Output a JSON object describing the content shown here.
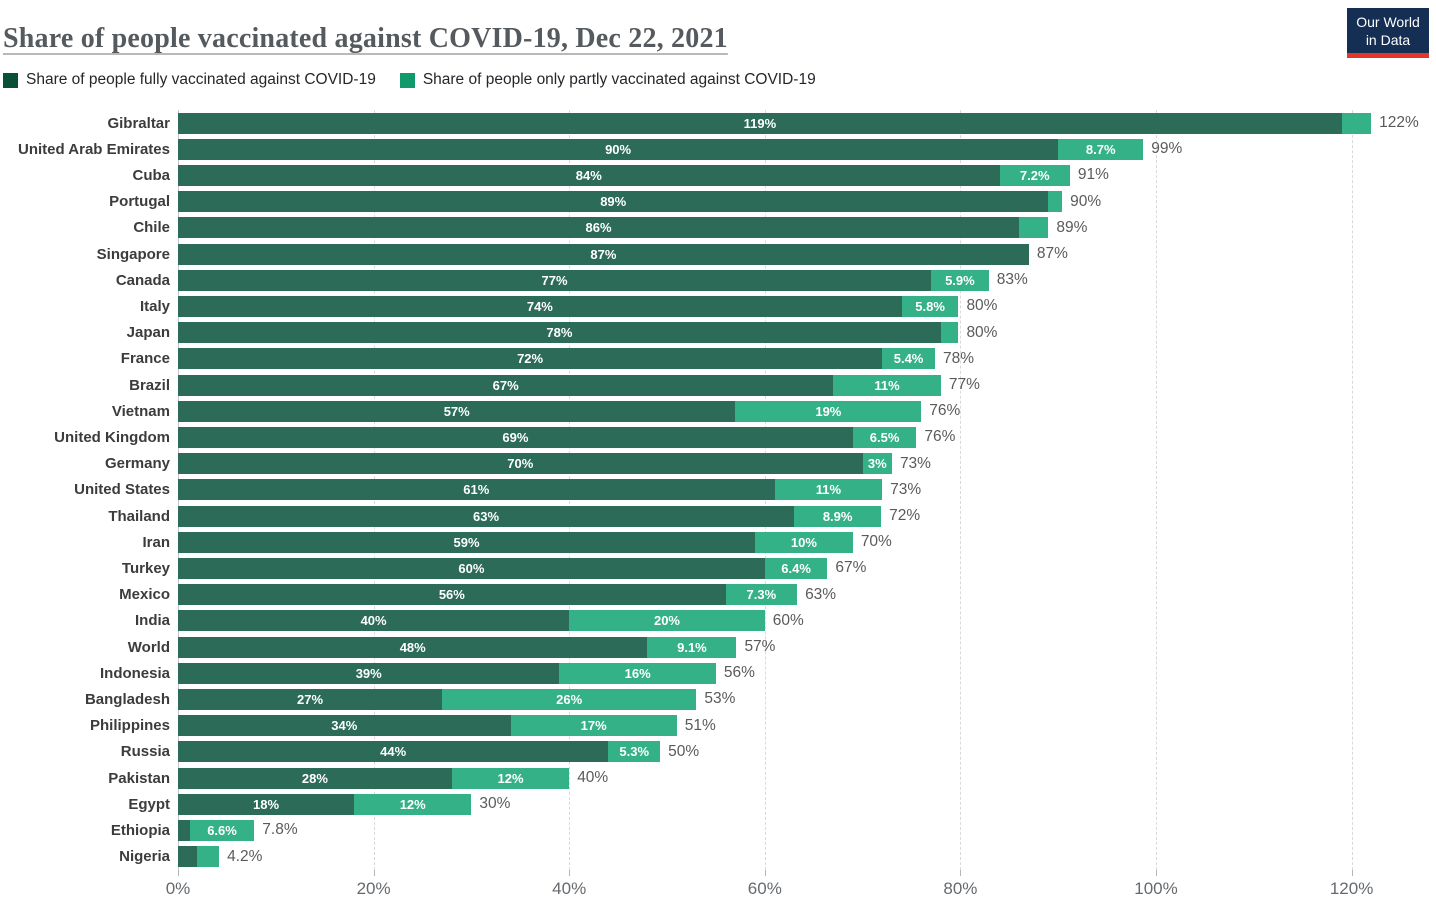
{
  "header": {
    "title": "Share of people vaccinated against COVID-19, Dec 22, 2021",
    "logo": {
      "line1": "Our World",
      "line2": "in Data",
      "bg_color": "#152e53",
      "accent_color": "#e0362c"
    }
  },
  "legend": [
    {
      "label": "Share of people fully vaccinated against COVID-19",
      "color": "#0a4f3a"
    },
    {
      "label": "Share of people only partly vaccinated against COVID-19",
      "color": "#10996a"
    }
  ],
  "chart_data": {
    "type": "bar",
    "orientation": "horizontal",
    "stacked": true,
    "title": "Share of people vaccinated against COVID-19, Dec 22, 2021",
    "series_names": [
      "Share of people fully vaccinated against COVID-19",
      "Share of people only partly vaccinated against COVID-19"
    ],
    "colors": {
      "full_bar": "#2b6b57",
      "partial_bar": "#35b188"
    },
    "xlim": [
      0,
      128.6
    ],
    "x_ticks": [
      {
        "value": 0,
        "label": "0%"
      },
      {
        "value": 20,
        "label": "20%"
      },
      {
        "value": 40,
        "label": "40%"
      },
      {
        "value": 60,
        "label": "60%"
      },
      {
        "value": 80,
        "label": "80%"
      },
      {
        "value": 100,
        "label": "100%"
      },
      {
        "value": 120,
        "label": "120%"
      }
    ],
    "rows": [
      {
        "country": "Gibraltar",
        "full": 119,
        "partial": 3,
        "full_label": "119%",
        "partial_label": "",
        "total_label": "122%"
      },
      {
        "country": "United Arab Emirates",
        "full": 90,
        "partial": 8.7,
        "full_label": "90%",
        "partial_label": "8.7%",
        "total_label": "99%"
      },
      {
        "country": "Cuba",
        "full": 84,
        "partial": 7.2,
        "full_label": "84%",
        "partial_label": "7.2%",
        "total_label": "91%"
      },
      {
        "country": "Portugal",
        "full": 89,
        "partial": 1.4,
        "full_label": "89%",
        "partial_label": "",
        "total_label": "90%"
      },
      {
        "country": "Chile",
        "full": 86,
        "partial": 3,
        "full_label": "86%",
        "partial_label": "",
        "total_label": "89%"
      },
      {
        "country": "Singapore",
        "full": 87,
        "partial": 0,
        "full_label": "87%",
        "partial_label": "",
        "total_label": "87%"
      },
      {
        "country": "Canada",
        "full": 77,
        "partial": 5.9,
        "full_label": "77%",
        "partial_label": "5.9%",
        "total_label": "83%"
      },
      {
        "country": "Italy",
        "full": 74,
        "partial": 5.8,
        "full_label": "74%",
        "partial_label": "5.8%",
        "total_label": "80%"
      },
      {
        "country": "Japan",
        "full": 78,
        "partial": 1.8,
        "full_label": "78%",
        "partial_label": "",
        "total_label": "80%"
      },
      {
        "country": "France",
        "full": 72,
        "partial": 5.4,
        "full_label": "72%",
        "partial_label": "5.4%",
        "total_label": "78%"
      },
      {
        "country": "Brazil",
        "full": 67,
        "partial": 11,
        "full_label": "67%",
        "partial_label": "11%",
        "total_label": "77%"
      },
      {
        "country": "Vietnam",
        "full": 57,
        "partial": 19,
        "full_label": "57%",
        "partial_label": "19%",
        "total_label": "76%"
      },
      {
        "country": "United Kingdom",
        "full": 69,
        "partial": 6.5,
        "full_label": "69%",
        "partial_label": "6.5%",
        "total_label": "76%"
      },
      {
        "country": "Germany",
        "full": 70,
        "partial": 3,
        "full_label": "70%",
        "partial_label": "3%",
        "total_label": "73%"
      },
      {
        "country": "United States",
        "full": 61,
        "partial": 11,
        "full_label": "61%",
        "partial_label": "11%",
        "total_label": "73%"
      },
      {
        "country": "Thailand",
        "full": 63,
        "partial": 8.9,
        "full_label": "63%",
        "partial_label": "8.9%",
        "total_label": "72%"
      },
      {
        "country": "Iran",
        "full": 59,
        "partial": 10,
        "full_label": "59%",
        "partial_label": "10%",
        "total_label": "70%"
      },
      {
        "country": "Turkey",
        "full": 60,
        "partial": 6.4,
        "full_label": "60%",
        "partial_label": "6.4%",
        "total_label": "67%"
      },
      {
        "country": "Mexico",
        "full": 56,
        "partial": 7.3,
        "full_label": "56%",
        "partial_label": "7.3%",
        "total_label": "63%"
      },
      {
        "country": "India",
        "full": 40,
        "partial": 20,
        "full_label": "40%",
        "partial_label": "20%",
        "total_label": "60%"
      },
      {
        "country": "World",
        "full": 48,
        "partial": 9.1,
        "full_label": "48%",
        "partial_label": "9.1%",
        "total_label": "57%"
      },
      {
        "country": "Indonesia",
        "full": 39,
        "partial": 16,
        "full_label": "39%",
        "partial_label": "16%",
        "total_label": "56%"
      },
      {
        "country": "Bangladesh",
        "full": 27,
        "partial": 26,
        "full_label": "27%",
        "partial_label": "26%",
        "total_label": "53%"
      },
      {
        "country": "Philippines",
        "full": 34,
        "partial": 17,
        "full_label": "34%",
        "partial_label": "17%",
        "total_label": "51%"
      },
      {
        "country": "Russia",
        "full": 44,
        "partial": 5.3,
        "full_label": "44%",
        "partial_label": "5.3%",
        "total_label": "50%"
      },
      {
        "country": "Pakistan",
        "full": 28,
        "partial": 12,
        "full_label": "28%",
        "partial_label": "12%",
        "total_label": "40%"
      },
      {
        "country": "Egypt",
        "full": 18,
        "partial": 12,
        "full_label": "18%",
        "partial_label": "12%",
        "total_label": "30%"
      },
      {
        "country": "Ethiopia",
        "full": 1.2,
        "partial": 6.6,
        "full_label": "",
        "partial_label": "6.6%",
        "total_label": "7.8%"
      },
      {
        "country": "Nigeria",
        "full": 1.9,
        "partial": 2.3,
        "full_label": "",
        "partial_label": "",
        "total_label": "4.2%"
      }
    ]
  }
}
